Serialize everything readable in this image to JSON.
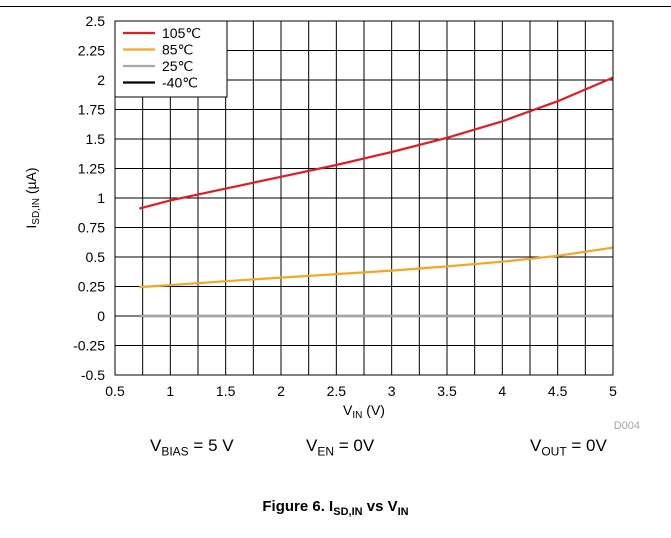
{
  "chart_data": {
    "type": "line",
    "code": "D004",
    "xlabel": {
      "main": "V",
      "sub": "IN",
      "unit": " (V)"
    },
    "ylabel": {
      "main": "I",
      "sub": "SD,IN",
      "unit": " (µA)"
    },
    "xlim": [
      0.5,
      5
    ],
    "ylim": [
      -0.5,
      2.5
    ],
    "grid": true,
    "legend_position": "top-left",
    "x_ticks": [
      "0.5",
      "1",
      "1.5",
      "2",
      "2.5",
      "3",
      "3.5",
      "4",
      "4.5",
      "5"
    ],
    "y_ticks": [
      "2.5",
      "2.25",
      "2",
      "1.75",
      "1.5",
      "1.25",
      "1",
      "0.75",
      "0.5",
      "0.25",
      "0",
      "-0.25",
      "-0.5"
    ],
    "series": [
      {
        "name": "105℃",
        "color": "#e31b23",
        "x": [
          0.72,
          1,
          1.5,
          2,
          2.5,
          3,
          3.5,
          4,
          4.5,
          5
        ],
        "y": [
          0.91,
          0.98,
          1.08,
          1.18,
          1.28,
          1.39,
          1.51,
          1.65,
          1.82,
          2.02
        ]
      },
      {
        "name": "85℃",
        "color": "#f5a623",
        "x": [
          0.72,
          1,
          1.5,
          2,
          2.5,
          3,
          3.5,
          4,
          4.5,
          5
        ],
        "y": [
          0.245,
          0.262,
          0.295,
          0.325,
          0.355,
          0.385,
          0.42,
          0.46,
          0.51,
          0.58
        ]
      },
      {
        "name": "25℃",
        "color": "#a6a6a6",
        "x": [
          0.72,
          5
        ],
        "y": [
          0.0,
          0.0
        ]
      },
      {
        "name": "-40℃",
        "color": "#000000",
        "x": [
          0.72,
          5
        ],
        "y": [
          0.0,
          0.0
        ]
      }
    ]
  },
  "conditions": [
    {
      "main": "V",
      "sub": "BIAS",
      "value": " = 5 V"
    },
    {
      "main": "V",
      "sub": "EN",
      "value": " = 0V"
    },
    {
      "main": "V",
      "sub": "OUT",
      "value": " = 0V"
    }
  ],
  "caption": {
    "prefix": "Figure 6. I",
    "sub1": "SD,IN",
    "middle": " vs V",
    "sub2": "IN"
  }
}
